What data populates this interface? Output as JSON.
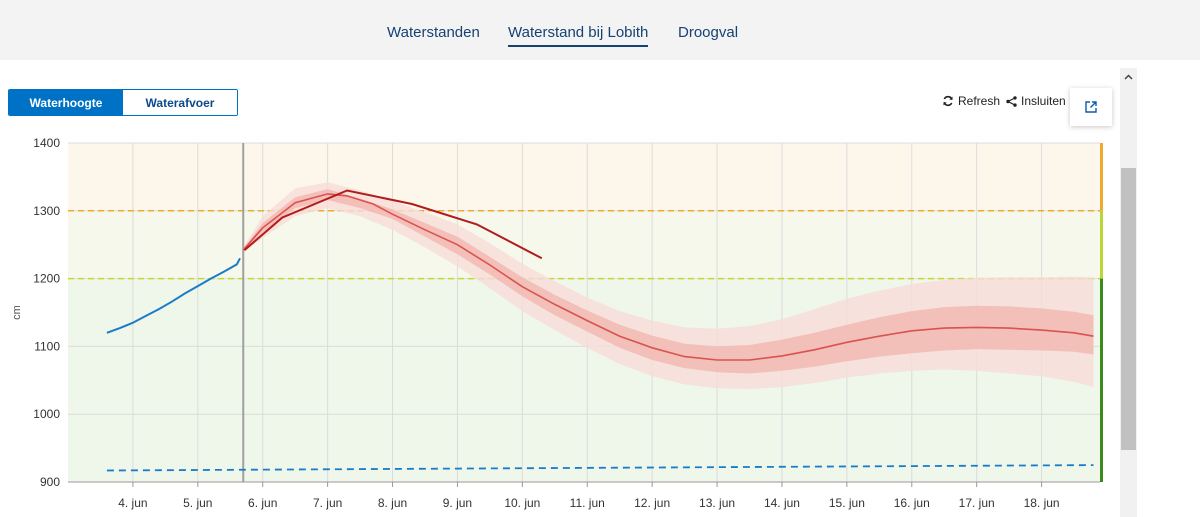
{
  "nav": {
    "tabs": [
      {
        "label": "Waterstanden"
      },
      {
        "label": "Waterstand bij Lobith"
      },
      {
        "label": "Droogval"
      }
    ],
    "active_tab": 1
  },
  "toggle": {
    "waterhoogte": "Waterhoogte",
    "waterafvoer": "Waterafvoer",
    "active": "waterhoogte"
  },
  "toolbar": {
    "refresh": "Refresh",
    "close": "Insluiten"
  },
  "icons": {
    "refresh": "refresh-icon",
    "share": "share-icon",
    "popout": "external-link-icon",
    "scroll_up": "chevron-up-icon"
  },
  "colors": {
    "measured": "#1a7cc8",
    "forecast": "#d9534f",
    "band_inner": "#f3b7b0",
    "band_outer": "#f8dcd8",
    "expected": "#b01c1c",
    "threshold_high": "#f0a830",
    "threshold_mid": "#c8d830",
    "low_line": "#1a7cc8",
    "zone_orange": "#fdf7eb",
    "zone_yellow": "#f5f8ea",
    "zone_green": "#eff6ea"
  },
  "chart_data": {
    "type": "line",
    "ylabel": "cm",
    "ylim": [
      900,
      1400
    ],
    "yticks": [
      900,
      1000,
      1100,
      1200,
      1300,
      1400
    ],
    "xticks": [
      "4. jun",
      "5. jun",
      "6. jun",
      "7. jun",
      "8. jun",
      "9. jun",
      "10. jun",
      "11. jun",
      "12. jun",
      "13. jun",
      "14. jun",
      "15. jun",
      "16. jun",
      "17. jun",
      "18. jun"
    ],
    "now": 5.7,
    "thresholds": [
      1300,
      1200
    ],
    "series": [
      {
        "kind": "measured",
        "x": [
          3.6,
          3.8,
          4.0,
          4.2,
          4.4,
          4.6,
          4.8,
          5.0,
          5.2,
          5.4,
          5.6,
          5.65
        ],
        "y": [
          1120,
          1127,
          1135,
          1145,
          1155,
          1166,
          1178,
          1189,
          1200,
          1210,
          1221,
          1230
        ]
      },
      {
        "kind": "forecast_median",
        "x": [
          5.7,
          6.0,
          6.5,
          7.0,
          7.3,
          7.7,
          8.0,
          8.5,
          9.0,
          9.5,
          10.0,
          10.5,
          11.0,
          11.5,
          12.0,
          12.5,
          13.0,
          13.5,
          14.0,
          14.5,
          15.0,
          15.5,
          16.0,
          16.5,
          17.0,
          17.5,
          18.0,
          18.5,
          18.8
        ],
        "y": [
          1242,
          1275,
          1312,
          1325,
          1322,
          1310,
          1295,
          1272,
          1250,
          1220,
          1188,
          1162,
          1138,
          1115,
          1098,
          1085,
          1080,
          1080,
          1086,
          1095,
          1106,
          1115,
          1123,
          1127,
          1128,
          1127,
          1124,
          1120,
          1115
        ]
      },
      {
        "kind": "band_inner_upper",
        "x": [
          5.7,
          6.0,
          6.5,
          7.0,
          7.5,
          8.0,
          8.5,
          9.0,
          9.5,
          10.0,
          10.5,
          11.0,
          11.5,
          12.0,
          12.5,
          13.0,
          13.5,
          14.0,
          14.5,
          15.0,
          15.5,
          16.0,
          16.5,
          17.0,
          17.5,
          18.0,
          18.5,
          18.8
        ],
        "y": [
          1244,
          1282,
          1320,
          1332,
          1318,
          1302,
          1282,
          1262,
          1232,
          1202,
          1176,
          1153,
          1132,
          1116,
          1104,
          1100,
          1102,
          1110,
          1120,
          1132,
          1143,
          1152,
          1158,
          1160,
          1159,
          1156,
          1151,
          1146
        ]
      },
      {
        "kind": "band_inner_lower",
        "x": [
          5.7,
          6.0,
          6.5,
          7.0,
          7.5,
          8.0,
          8.5,
          9.0,
          9.5,
          10.0,
          10.5,
          11.0,
          11.5,
          12.0,
          12.5,
          13.0,
          13.5,
          14.0,
          14.5,
          15.0,
          15.5,
          16.0,
          16.5,
          17.0,
          17.5,
          18.0,
          18.5,
          18.8
        ],
        "y": [
          1240,
          1268,
          1304,
          1316,
          1304,
          1288,
          1262,
          1236,
          1206,
          1174,
          1146,
          1122,
          1098,
          1080,
          1068,
          1062,
          1060,
          1064,
          1070,
          1078,
          1085,
          1090,
          1094,
          1096,
          1095,
          1094,
          1092,
          1088
        ]
      },
      {
        "kind": "band_outer_upper",
        "x": [
          5.7,
          6.0,
          6.5,
          7.0,
          7.5,
          8.0,
          8.5,
          9.0,
          9.5,
          10.0,
          10.5,
          11.0,
          11.5,
          12.0,
          12.5,
          13.0,
          13.5,
          14.0,
          14.5,
          15.0,
          15.5,
          16.0,
          16.5,
          17.0,
          17.5,
          18.0,
          18.5,
          18.8
        ],
        "y": [
          1246,
          1292,
          1333,
          1342,
          1330,
          1315,
          1298,
          1280,
          1252,
          1222,
          1196,
          1172,
          1152,
          1138,
          1128,
          1126,
          1130,
          1140,
          1155,
          1170,
          1182,
          1192,
          1198,
          1201,
          1202,
          1202,
          1203,
          1202
        ]
      },
      {
        "kind": "band_outer_lower",
        "x": [
          5.7,
          6.0,
          6.5,
          7.0,
          7.5,
          8.0,
          8.5,
          9.0,
          9.5,
          10.0,
          10.5,
          11.0,
          11.5,
          12.0,
          12.5,
          13.0,
          13.5,
          14.0,
          14.5,
          15.0,
          15.5,
          16.0,
          16.5,
          17.0,
          17.5,
          18.0,
          18.5,
          18.8
        ],
        "y": [
          1238,
          1260,
          1292,
          1304,
          1292,
          1272,
          1246,
          1218,
          1186,
          1152,
          1124,
          1098,
          1074,
          1056,
          1044,
          1038,
          1037,
          1040,
          1046,
          1054,
          1060,
          1064,
          1066,
          1064,
          1060,
          1056,
          1048,
          1040
        ]
      },
      {
        "kind": "expected",
        "x": [
          5.72,
          6.3,
          7.3,
          8.3,
          9.3,
          10.3
        ],
        "y": [
          1242,
          1290,
          1330,
          1310,
          1280,
          1230
        ]
      },
      {
        "kind": "low_level",
        "x": [
          3.6,
          18.8
        ],
        "y": [
          917,
          925
        ]
      }
    ]
  }
}
